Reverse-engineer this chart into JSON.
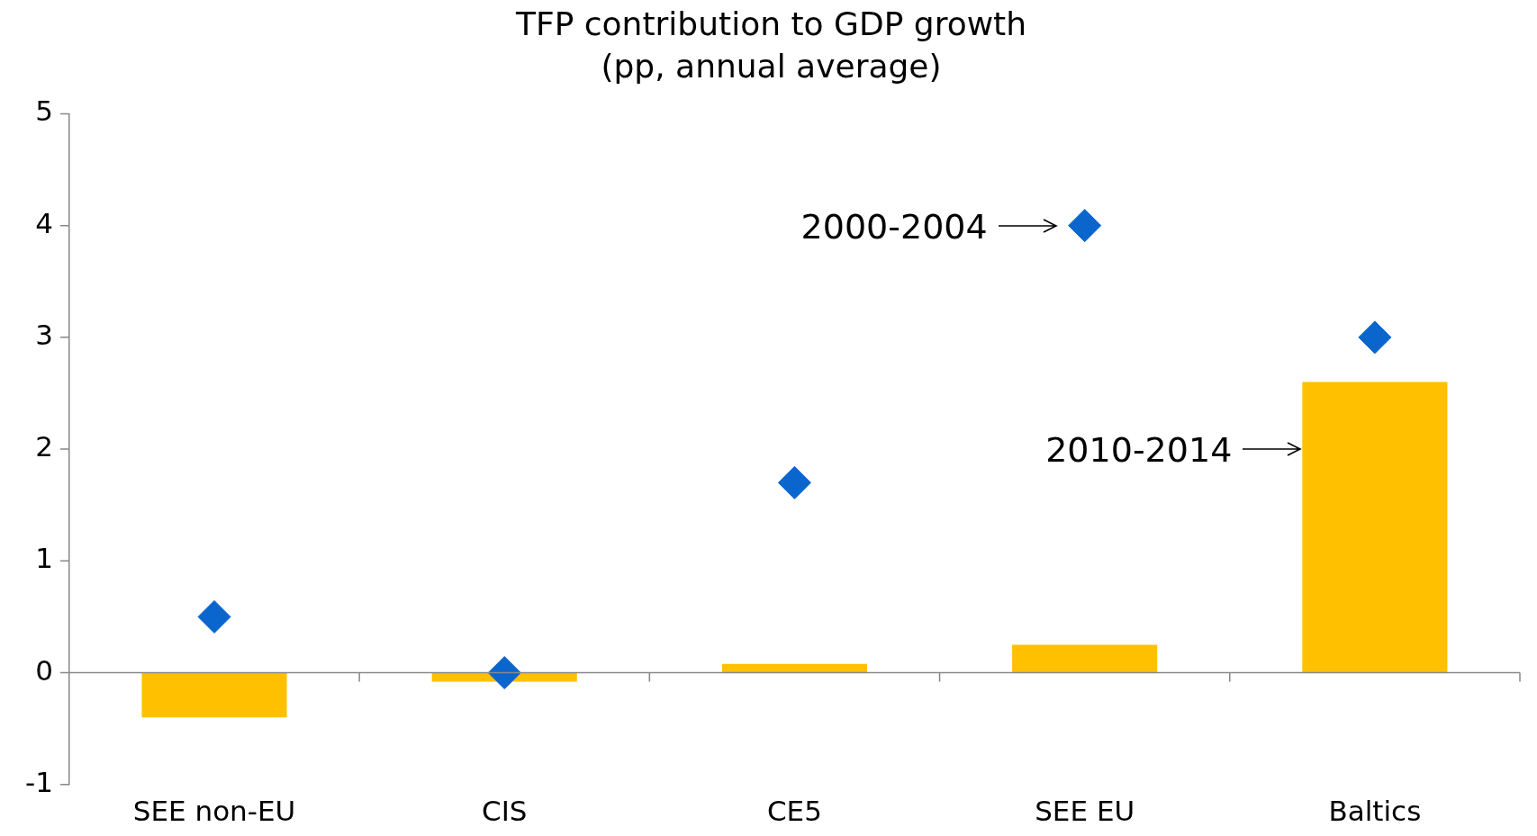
{
  "chart_data": {
    "type": "bar",
    "title": "TFP contribution to GDP growth",
    "subtitle": "(pp, annual average)",
    "categories": [
      "SEE non-EU",
      "CIS",
      "CE5",
      "SEE EU",
      "Baltics"
    ],
    "series": [
      {
        "name": "2010-2014",
        "color": "#ffc000",
        "values": [
          -0.4,
          -0.08,
          0.08,
          0.25,
          2.6
        ]
      },
      {
        "name": "2000-2004",
        "type": "scatter",
        "color": "#0a66cc",
        "values": [
          0.5,
          0,
          1.7,
          4.0,
          3.0
        ]
      }
    ],
    "ylim": [
      -1,
      5
    ],
    "yticks": [
      -1,
      0,
      1,
      2,
      3,
      4,
      5
    ],
    "marker": "diamond"
  }
}
